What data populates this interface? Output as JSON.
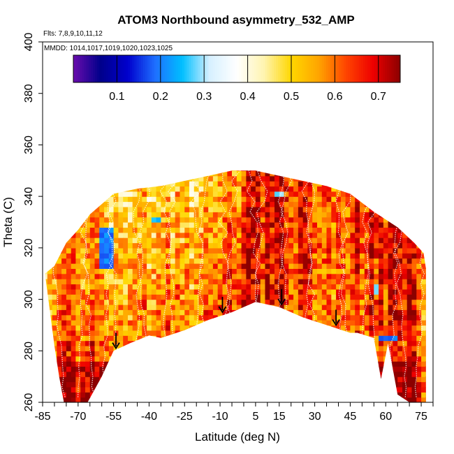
{
  "chart_data": {
    "type": "heatmap",
    "title": "ATOM3 Northbound asymmetry_532_AMP",
    "flights_note": "Flts: 7,8,9,10,11,12",
    "dates_note": "MMDD: 1014,1017,1019,1020,1023,1025",
    "xlabel": "Latitude (deg N)",
    "ylabel": "Theta (C)",
    "xlim": [
      -85,
      80
    ],
    "ylim": [
      260,
      400
    ],
    "x_tick_labels": [
      "-85",
      "-70",
      "-55",
      "-40",
      "-25",
      "-10",
      "5",
      "15",
      "30",
      "45",
      "60",
      "75"
    ],
    "x_tick_values": [
      -85,
      -70,
      -55,
      -40,
      -25,
      -10,
      5,
      15,
      30,
      45,
      60,
      75
    ],
    "y_tick_labels": [
      "260",
      "280",
      "300",
      "320",
      "340",
      "360",
      "380",
      "400"
    ],
    "y_tick_values": [
      260,
      280,
      300,
      320,
      340,
      360,
      380,
      400
    ],
    "colorbar": {
      "labels": [
        "0.1",
        "0.2",
        "0.3",
        "0.4",
        "0.5",
        "0.6",
        "0.7"
      ],
      "values": [
        0.1,
        0.2,
        0.3,
        0.4,
        0.5,
        0.6,
        0.7
      ],
      "range": [
        0.0,
        0.75
      ],
      "colors": [
        "#6a0dad",
        "#00008b",
        "#0000cd",
        "#1e6fff",
        "#00bfff",
        "#d6f0ff",
        "#ffffff",
        "#fff4b0",
        "#ffd700",
        "#ffa500",
        "#ff4500",
        "#ee0000",
        "#8b0000"
      ]
    },
    "upper_boundary": [
      [
        -84,
        310
      ],
      [
        -80,
        313
      ],
      [
        -75,
        322
      ],
      [
        -70,
        327
      ],
      [
        -65,
        333
      ],
      [
        -55,
        341
      ],
      [
        -45,
        343
      ],
      [
        -35,
        344
      ],
      [
        -25,
        346
      ],
      [
        -15,
        348
      ],
      [
        -5,
        350
      ],
      [
        5,
        350
      ],
      [
        15,
        348
      ],
      [
        25,
        346
      ],
      [
        35,
        344
      ],
      [
        45,
        341
      ],
      [
        55,
        334
      ],
      [
        65,
        328
      ],
      [
        72,
        322
      ],
      [
        76,
        318
      ],
      [
        77,
        312
      ]
    ],
    "lower_boundary": [
      [
        -84,
        310
      ],
      [
        -82,
        296
      ],
      [
        -80,
        282
      ],
      [
        -78,
        270
      ],
      [
        -76,
        260
      ],
      [
        -66,
        260
      ],
      [
        -60,
        270
      ],
      [
        -55,
        280
      ],
      [
        -48,
        283
      ],
      [
        -40,
        286
      ],
      [
        -35,
        285
      ],
      [
        -25,
        288
      ],
      [
        -15,
        292
      ],
      [
        -5,
        295
      ],
      [
        5,
        299
      ],
      [
        15,
        297
      ],
      [
        25,
        293
      ],
      [
        35,
        290
      ],
      [
        45,
        287
      ],
      [
        48,
        287
      ],
      [
        55,
        285
      ],
      [
        58,
        269
      ],
      [
        61,
        283
      ],
      [
        65,
        263
      ],
      [
        70,
        260
      ],
      [
        77,
        260
      ],
      [
        77,
        312
      ]
    ],
    "base_amp_profile": [
      [
        -85,
        0.55
      ],
      [
        -70,
        0.6
      ],
      [
        -55,
        0.57
      ],
      [
        -40,
        0.55
      ],
      [
        -25,
        0.58
      ],
      [
        -10,
        0.62
      ],
      [
        5,
        0.68
      ],
      [
        15,
        0.66
      ],
      [
        30,
        0.62
      ],
      [
        45,
        0.63
      ],
      [
        60,
        0.66
      ],
      [
        75,
        0.64
      ]
    ],
    "blue_patches": [
      {
        "lat": [
          -60,
          -56
        ],
        "theta": [
          313,
          328
        ],
        "value": 0.2
      },
      {
        "lat": [
          58,
          64
        ],
        "theta": [
          284,
          286
        ],
        "value": 0.2
      },
      {
        "lat": [
          -38,
          -36
        ],
        "theta": [
          330,
          332
        ],
        "value": 0.25
      },
      {
        "lat": [
          14,
          16
        ],
        "theta": [
          340,
          342
        ],
        "value": 0.3
      },
      {
        "lat": [
          55,
          57
        ],
        "theta": [
          303,
          305
        ],
        "value": 0.3
      }
    ],
    "arrows": [
      {
        "lat": -54,
        "theta": 281
      },
      {
        "lat": -9,
        "theta": 295
      },
      {
        "lat": 16,
        "theta": 298
      },
      {
        "lat": 39,
        "theta": 290
      }
    ]
  }
}
